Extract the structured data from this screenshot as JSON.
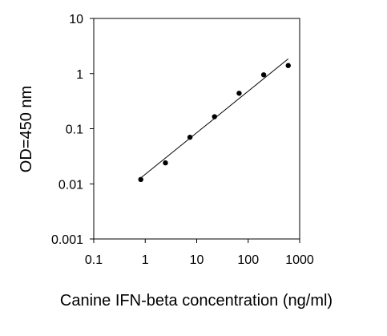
{
  "chart_data": {
    "type": "scatter",
    "title": "",
    "xlabel": "Canine IFN-beta concentration (ng/ml)",
    "ylabel": "OD=450 nm",
    "x_scale": "log",
    "y_scale": "log",
    "xlim": [
      0.1,
      1000
    ],
    "ylim": [
      0.001,
      10
    ],
    "x_ticks": [
      0.1,
      1,
      10,
      100,
      1000
    ],
    "x_tick_labels": [
      "0.1",
      "1",
      "10",
      "100",
      "1000"
    ],
    "y_ticks": [
      0.001,
      0.01,
      0.1,
      1,
      10
    ],
    "y_tick_labels": [
      "0.001",
      "0.01",
      "0.1",
      "1",
      "10"
    ],
    "grid": false,
    "series": [
      {
        "points": [
          {
            "x": 0.82,
            "y": 0.012
          },
          {
            "x": 2.47,
            "y": 0.024
          },
          {
            "x": 7.4,
            "y": 0.07
          },
          {
            "x": 22.2,
            "y": 0.165
          },
          {
            "x": 66.7,
            "y": 0.44
          },
          {
            "x": 200,
            "y": 0.95
          },
          {
            "x": 600,
            "y": 1.4
          }
        ]
      }
    ],
    "trendline": {
      "type": "linear-fit-log-log",
      "x_range": [
        0.82,
        600
      ],
      "y_range": [
        0.0128,
        1.85
      ]
    },
    "colors": {
      "points": "#000000",
      "line": "#000000",
      "axis": "#000000"
    }
  }
}
